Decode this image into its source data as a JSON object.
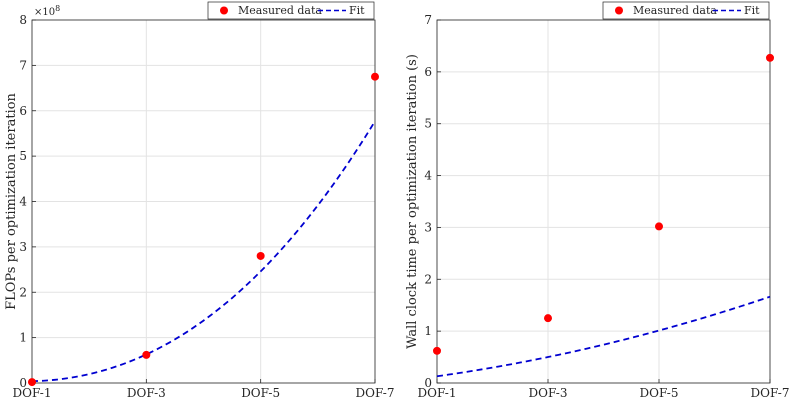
{
  "chart_data": [
    {
      "type": "scatter",
      "categories": [
        "DOF-1",
        "DOF-3",
        "DOF-5",
        "DOF-7"
      ],
      "xlabel": "",
      "ylabel": "FLOPs per optimization iteration",
      "y_multiplier": "×10",
      "y_multiplier_exponent": "8",
      "ylim": [
        0,
        8
      ],
      "yticks": [
        0,
        1,
        2,
        3,
        4,
        5,
        6,
        7,
        8
      ],
      "grid": true,
      "legend_position": "top-right",
      "series": [
        {
          "name": "Measured data",
          "kind": "points",
          "color": "#ff0000",
          "values": [
            0.02,
            0.62,
            2.8,
            6.75
          ]
        },
        {
          "name": "Fit",
          "kind": "dashed-line",
          "color": "#0000d0",
          "quadratic": [
            0.02,
            0.138,
            0.0375
          ]
        }
      ]
    },
    {
      "type": "scatter",
      "categories": [
        "DOF-1",
        "DOF-3",
        "DOF-5",
        "DOF-7"
      ],
      "xlabel": "",
      "ylabel": "Wall clock time per optimization iteration (s)",
      "ylim": [
        0,
        7
      ],
      "yticks": [
        0,
        1,
        2,
        3,
        4,
        5,
        6,
        7
      ],
      "grid": true,
      "legend_position": "top-right",
      "series": [
        {
          "name": "Measured data",
          "kind": "points",
          "color": "#ff0000",
          "values": [
            0.62,
            1.25,
            3.02,
            6.27
          ]
        },
        {
          "name": "Fit",
          "kind": "dashed-line",
          "color": "#0000d0",
          "quadratic": [
            0.13,
            0.3,
            0.0705
          ]
        }
      ]
    }
  ]
}
